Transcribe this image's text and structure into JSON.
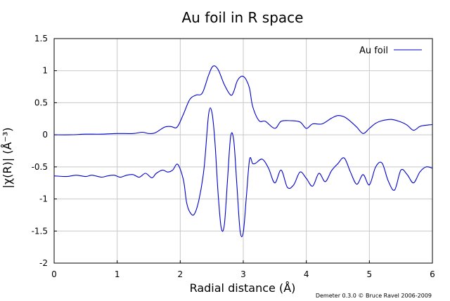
{
  "chart_data": {
    "type": "line",
    "title": "Au foil in R space",
    "xlabel": "Radial distance (Å)",
    "ylabel": "|χ(R)| (Å⁻³)",
    "credit": "Demeter 0.3.0 © Bruce Ravel 2006-2009",
    "xlim": [
      0,
      6
    ],
    "ylim": [
      -2,
      1.5
    ],
    "xticks": [
      "0",
      "1",
      "2",
      "3",
      "4",
      "5",
      "6"
    ],
    "yticks": [
      "1.5",
      "1",
      "0.5",
      "0",
      "-0.5",
      "-1",
      "-1.5",
      "-2"
    ],
    "grid": true,
    "legend_position": "top-right",
    "line_color": "#0000cc",
    "series": [
      {
        "name": "Au foil",
        "role": "magnitude",
        "x": [
          0,
          0.25,
          0.5,
          0.75,
          1.0,
          1.25,
          1.4,
          1.5,
          1.6,
          1.75,
          1.85,
          1.95,
          2.05,
          2.15,
          2.25,
          2.35,
          2.45,
          2.52,
          2.6,
          2.7,
          2.8,
          2.85,
          2.9,
          2.95,
          3.0,
          3.05,
          3.1,
          3.15,
          3.25,
          3.35,
          3.5,
          3.6,
          3.75,
          3.9,
          4.0,
          4.1,
          4.25,
          4.4,
          4.5,
          4.6,
          4.7,
          4.8,
          4.9,
          5.0,
          5.1,
          5.2,
          5.35,
          5.5,
          5.6,
          5.7,
          5.8,
          5.9,
          6.0
        ],
        "y": [
          0.0,
          0.0,
          0.01,
          0.01,
          0.02,
          0.02,
          0.04,
          0.02,
          0.03,
          0.12,
          0.13,
          0.12,
          0.32,
          0.55,
          0.62,
          0.65,
          0.93,
          1.07,
          1.02,
          0.78,
          0.62,
          0.68,
          0.83,
          0.9,
          0.91,
          0.85,
          0.72,
          0.44,
          0.22,
          0.21,
          0.1,
          0.21,
          0.22,
          0.2,
          0.1,
          0.17,
          0.17,
          0.26,
          0.3,
          0.28,
          0.21,
          0.12,
          0.02,
          0.1,
          0.18,
          0.22,
          0.24,
          0.2,
          0.15,
          0.07,
          0.13,
          0.15,
          0.16
        ]
      },
      {
        "name": "",
        "role": "real part",
        "x": [
          0,
          0.2,
          0.35,
          0.5,
          0.6,
          0.75,
          0.85,
          0.95,
          1.05,
          1.15,
          1.25,
          1.35,
          1.45,
          1.55,
          1.62,
          1.72,
          1.8,
          1.88,
          1.96,
          2.05,
          2.1,
          2.15,
          2.22,
          2.3,
          2.38,
          2.45,
          2.5,
          2.55,
          2.6,
          2.65,
          2.7,
          2.75,
          2.8,
          2.85,
          2.9,
          2.95,
          3.0,
          3.05,
          3.1,
          3.15,
          3.2,
          3.3,
          3.4,
          3.5,
          3.6,
          3.7,
          3.8,
          3.9,
          4.0,
          4.1,
          4.2,
          4.3,
          4.4,
          4.5,
          4.6,
          4.7,
          4.8,
          4.9,
          5.0,
          5.1,
          5.2,
          5.3,
          5.4,
          5.5,
          5.6,
          5.7,
          5.8,
          5.9,
          6.0
        ],
        "y": [
          -0.64,
          -0.65,
          -0.63,
          -0.65,
          -0.63,
          -0.66,
          -0.64,
          -0.63,
          -0.66,
          -0.63,
          -0.62,
          -0.66,
          -0.6,
          -0.67,
          -0.6,
          -0.55,
          -0.58,
          -0.55,
          -0.46,
          -0.7,
          -1.05,
          -1.2,
          -1.24,
          -1.0,
          -0.5,
          0.32,
          0.36,
          -0.1,
          -0.9,
          -1.45,
          -1.4,
          -0.7,
          -0.02,
          -0.1,
          -0.8,
          -1.5,
          -1.52,
          -0.95,
          -0.38,
          -0.45,
          -0.44,
          -0.38,
          -0.52,
          -0.75,
          -0.55,
          -0.82,
          -0.78,
          -0.58,
          -0.68,
          -0.8,
          -0.6,
          -0.73,
          -0.56,
          -0.45,
          -0.36,
          -0.58,
          -0.77,
          -0.62,
          -0.78,
          -0.5,
          -0.44,
          -0.72,
          -0.86,
          -0.55,
          -0.62,
          -0.75,
          -0.58,
          -0.5,
          -0.52
        ]
      }
    ]
  }
}
